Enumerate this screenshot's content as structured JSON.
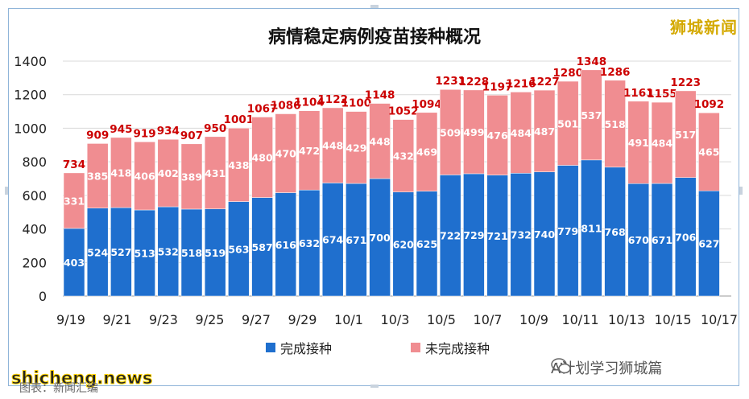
{
  "brand": {
    "logo_text": "狮城新闻",
    "watermark": "shicheng.news",
    "wechat_label": "A计划学习狮城篇",
    "source": "图表：新闻汇编"
  },
  "colors": {
    "completed": "#1f6fce",
    "uncompleted": "#f08d91",
    "total_label": "#cc0000",
    "grid": "#d9d9d9"
  },
  "chart_data": {
    "type": "bar",
    "stacked": true,
    "title": "病情稳定病例疫苗接种概况",
    "xlabel": "",
    "ylabel": "",
    "ylim": [
      0,
      1400
    ],
    "yticks": [
      0,
      200,
      400,
      600,
      800,
      1000,
      1200,
      1400
    ],
    "grid": true,
    "legend_position": "bottom",
    "categories": [
      "9/19",
      "9/20",
      "9/21",
      "9/22",
      "9/23",
      "9/24",
      "9/25",
      "9/26",
      "9/27",
      "9/28",
      "9/29",
      "9/30",
      "10/1",
      "10/2",
      "10/3",
      "10/4",
      "10/5",
      "10/6",
      "10/7",
      "10/8",
      "10/9",
      "10/10",
      "10/11",
      "10/12",
      "10/13",
      "10/14",
      "10/15",
      "10/16"
    ],
    "x_tick_labels": [
      "9/19",
      "9/21",
      "9/23",
      "9/25",
      "9/27",
      "9/29",
      "10/1",
      "10/3",
      "10/5",
      "10/7",
      "10/9",
      "10/11",
      "10/13",
      "10/15",
      "10/17"
    ],
    "series": [
      {
        "name": "完成接种",
        "values": [
          403,
          524,
          527,
          513,
          532,
          518,
          519,
          563,
          587,
          616,
          632,
          674,
          671,
          700,
          620,
          625,
          722,
          729,
          721,
          732,
          740,
          779,
          811,
          768,
          670,
          671,
          706,
          627
        ]
      },
      {
        "name": "未完成接种",
        "values": [
          331,
          385,
          418,
          406,
          402,
          389,
          431,
          438,
          480,
          470,
          472,
          448,
          429,
          448,
          432,
          469,
          509,
          499,
          476,
          484,
          487,
          501,
          537,
          518,
          491,
          484,
          517,
          465
        ]
      }
    ],
    "totals": [
      734,
      909,
      945,
      919,
      934,
      907,
      950,
      1001,
      1067,
      1086,
      1104,
      1122,
      1100,
      1148,
      1052,
      1094,
      1231,
      1228,
      1197,
      1216,
      1227,
      1280,
      1348,
      1286,
      1161,
      1155,
      1223,
      1092
    ]
  }
}
